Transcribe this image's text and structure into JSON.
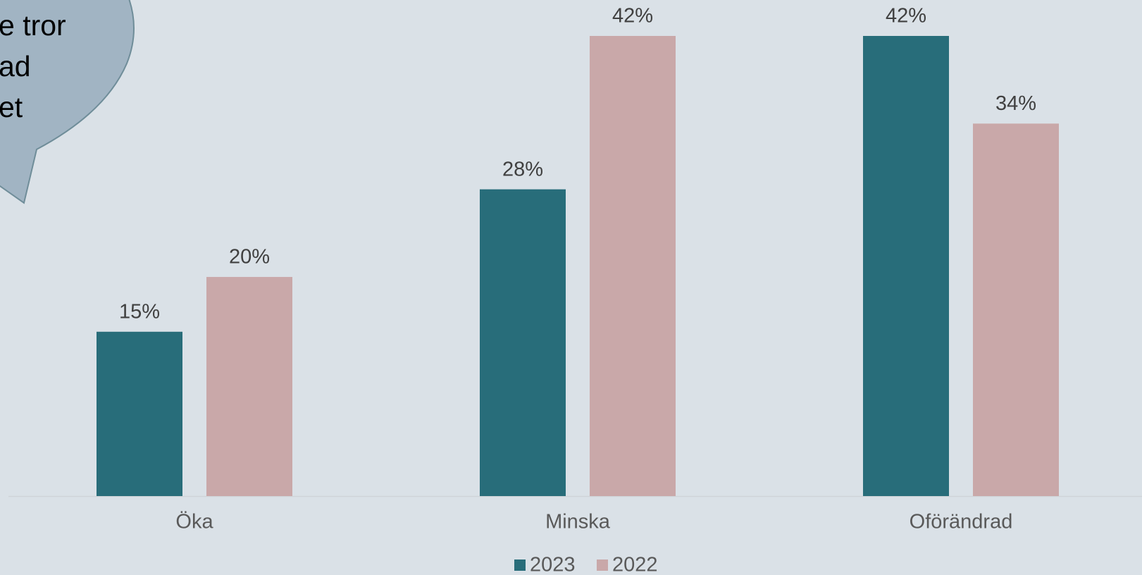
{
  "chart_data": {
    "type": "bar",
    "categories": [
      "Öka",
      "Minska",
      "Oförändrad"
    ],
    "series": [
      {
        "name": "2023",
        "color": "#286d7a",
        "values": [
          15,
          28,
          42
        ],
        "value_labels": [
          "15%",
          "28%",
          "42%"
        ]
      },
      {
        "name": "2022",
        "color": "#c9a8a9",
        "values": [
          20,
          42,
          34
        ],
        "value_labels": [
          "20%",
          "42%",
          "34%"
        ]
      }
    ],
    "annotation": [
      "e tror",
      "ad",
      "et"
    ]
  }
}
